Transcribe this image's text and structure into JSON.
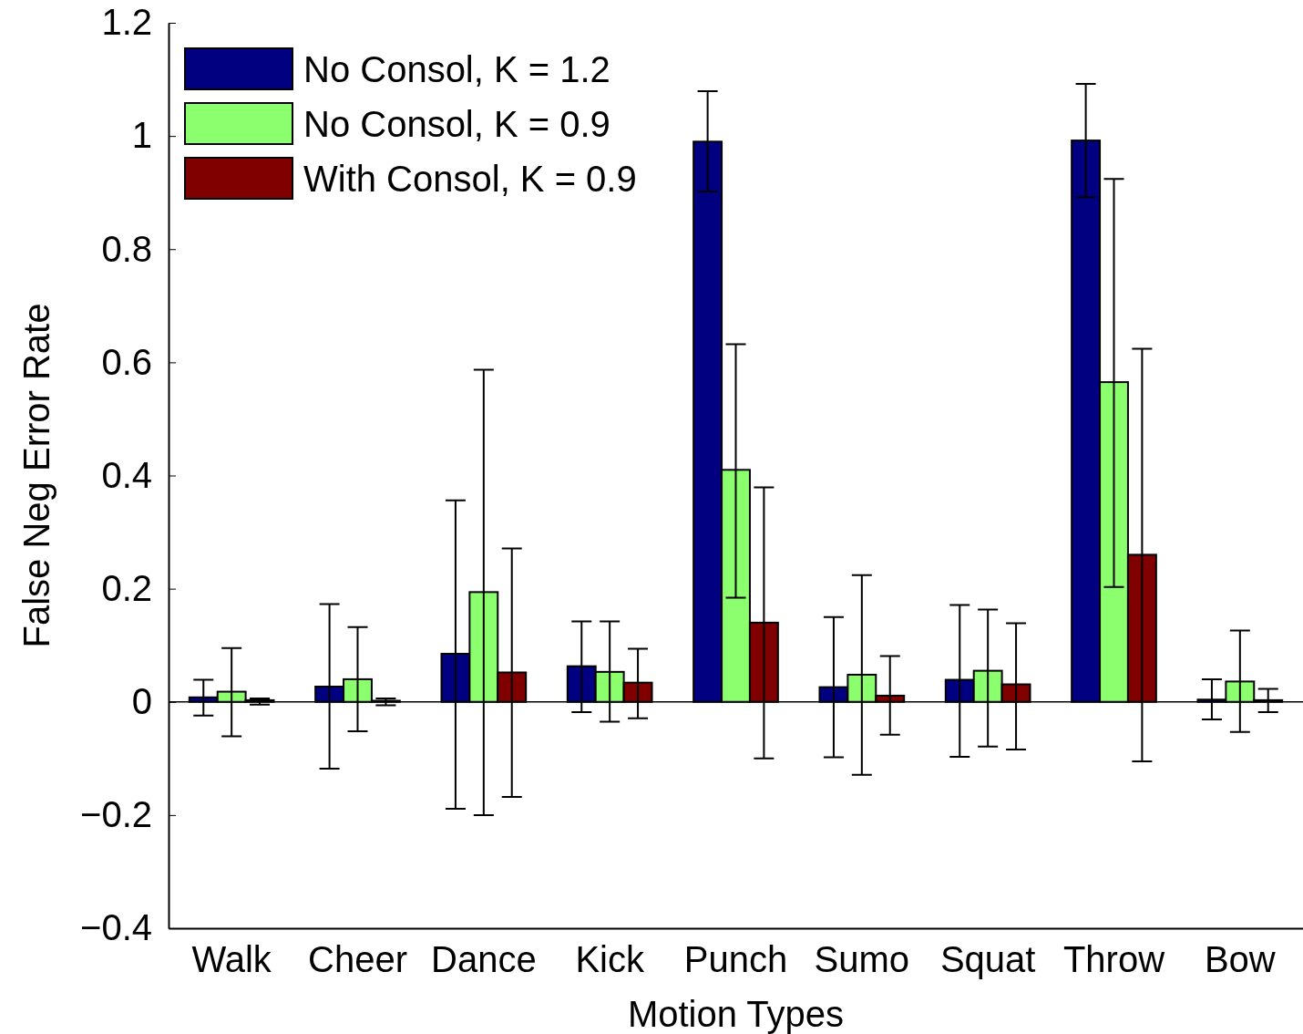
{
  "chart_data": {
    "type": "bar",
    "xlabel": "Motion Types",
    "ylabel": "False Neg Error Rate",
    "categories": [
      "Walk",
      "Cheer",
      "Dance",
      "Kick",
      "Punch",
      "Sumo",
      "Squat",
      "Throw",
      "Bow"
    ],
    "series": [
      {
        "name": "No Consol, K = 1.2",
        "color": "#000080",
        "values": [
          0.008,
          0.027,
          0.085,
          0.063,
          0.99,
          0.026,
          0.039,
          0.992,
          0.004
        ],
        "errors": [
          [
            -0.024,
            0.039
          ],
          [
            -0.118,
            0.173
          ],
          [
            -0.189,
            0.356
          ],
          [
            -0.018,
            0.142
          ],
          [
            0.902,
            1.079
          ],
          [
            -0.098,
            0.15
          ],
          [
            -0.097,
            0.171
          ],
          [
            0.892,
            1.092
          ],
          [
            -0.031,
            0.04
          ]
        ]
      },
      {
        "name": "No Consol, K = 0.9",
        "color": "#8cff6e",
        "values": [
          0.018,
          0.04,
          0.194,
          0.053,
          0.41,
          0.048,
          0.055,
          0.565,
          0.036
        ],
        "errors": [
          [
            -0.061,
            0.095
          ],
          [
            -0.052,
            0.132
          ],
          [
            -0.2,
            0.587
          ],
          [
            -0.035,
            0.142
          ],
          [
            0.184,
            0.632
          ],
          [
            -0.129,
            0.224
          ],
          [
            -0.079,
            0.163
          ],
          [
            0.203,
            0.924
          ],
          [
            -0.053,
            0.126
          ]
        ]
      },
      {
        "name": "With Consol, K = 0.9",
        "color": "#800000",
        "values": [
          0.003,
          0.002,
          0.052,
          0.034,
          0.14,
          0.011,
          0.031,
          0.26,
          0.003
        ],
        "errors": [
          [
            -0.005,
            0.006
          ],
          [
            -0.006,
            0.006
          ],
          [
            -0.168,
            0.271
          ],
          [
            -0.029,
            0.094
          ],
          [
            -0.1,
            0.379
          ],
          [
            -0.058,
            0.081
          ],
          [
            -0.084,
            0.139
          ],
          [
            -0.105,
            0.624
          ],
          [
            -0.018,
            0.023
          ]
        ]
      }
    ],
    "ylim": [
      -0.4,
      1.2
    ],
    "yticks": [
      {
        "value": -0.4,
        "label": "−0.4"
      },
      {
        "value": -0.2,
        "label": "−0.2"
      },
      0,
      0.2,
      0.4,
      0.6,
      0.8,
      1,
      1.2
    ],
    "ref_lines": [
      {
        "axis": "y",
        "value": 0,
        "color": "#000000"
      }
    ],
    "legend": "top left",
    "grid": false
  }
}
